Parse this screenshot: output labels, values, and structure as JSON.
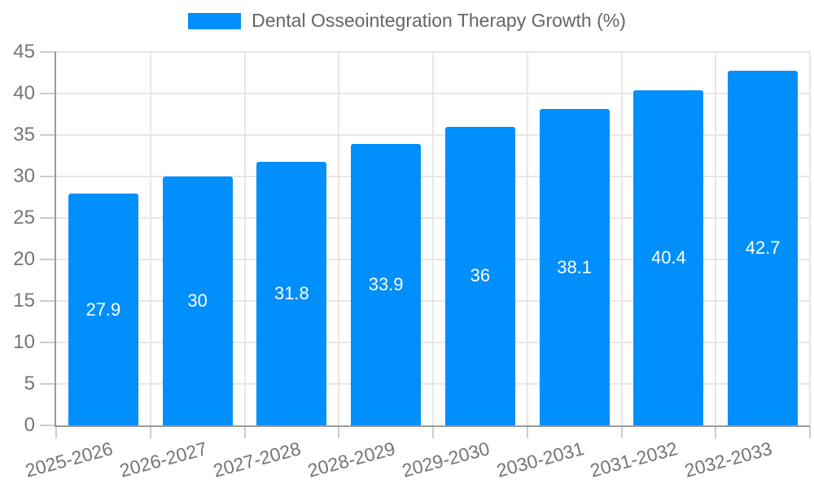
{
  "chart_data": {
    "type": "bar",
    "title": "Dental Osseointegration Therapy Growth (%)",
    "legend": {
      "label": "Dental Osseointegration Therapy Growth (%)",
      "position": "top"
    },
    "categories": [
      "2025-2026",
      "2026-2027",
      "2027-2028",
      "2028-2029",
      "2029-2030",
      "2030-2031",
      "2031-2032",
      "2032-2033"
    ],
    "values": [
      27.9,
      30,
      31.8,
      33.9,
      36,
      38.1,
      40.4,
      42.7
    ],
    "value_labels": [
      "27.9",
      "30",
      "31.8",
      "33.9",
      "36",
      "38.1",
      "40.4",
      "42.7"
    ],
    "xlabel": "",
    "ylabel": "",
    "ylim": [
      0,
      45
    ],
    "ytick_step": 5,
    "grid": true,
    "colors": {
      "bar": "#008FFB",
      "bar_label": "#FFFFFF",
      "grid": "#E7E7E7",
      "axis": "#9B9B9B",
      "tick": "#CCCCCC",
      "axis_label": "#757575",
      "legend_text": "#666666",
      "background": "#FFFFFF"
    }
  }
}
